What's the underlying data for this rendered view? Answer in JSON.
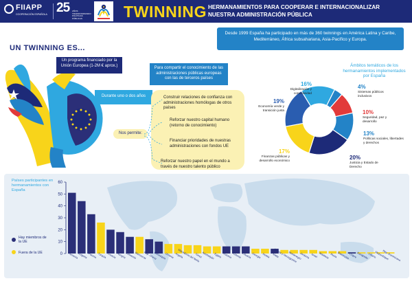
{
  "header": {
    "logo_name": "FIIAPP",
    "logo_sub": "COOPERACIÓN ESPAÑOLA",
    "anniv_num": "25",
    "anniv_sub": "AÑOS TRANSFORMANDO POLÍTICAS PÚBLICAS",
    "main_title": "TWINNING",
    "sub_title": "HERMANAMIENTOS PARA COOPERAR E INTERNACIONALIZAR NUESTRA ADMINISTRACIÓN PÚBLICA"
  },
  "section_title": "UN TWINNING ES...",
  "intro": "Desde 1999 España ha participado en más de 360 twinnings en América Latina y Caribe, Mediterráneo, África subsahariana, Asia-Pacífico y Europa.",
  "bubbles": {
    "funded": "Un programa financiado por la Unión Europea (1-2M € aprox.)",
    "share": "Para compartir el conocimiento de las administraciones públicas europeas con las de terceros países",
    "duration": "Durante uno o dos años",
    "allows": "Nos permite:"
  },
  "benefits": [
    "Construir relaciones de confianza con administraciones homólogas de otros países",
    "Reforzar nuestro capital humano (retorno de conocimiento)",
    "Financiar prioridades de nuestras administraciones con fondos UE",
    "Reforzar nuestro papel en el mundo a través de nuestro talento público"
  ],
  "donut": {
    "title": "Ámbitos temáticos de los hermanamientos implementados por España",
    "segments": [
      {
        "pct": "16%",
        "label": "Digitalización y conectividad",
        "value": 16,
        "color": "#2fa8e0"
      },
      {
        "pct": "4%",
        "label": "Sistemas públicos inclusivos",
        "value": 4,
        "color": "#2383c7"
      },
      {
        "pct": "10%",
        "label": "Seguridad, paz y desarrollo",
        "value": 10,
        "color": "#e23a3a"
      },
      {
        "pct": "13%",
        "label": "Políticas sociales, libertades y derechos",
        "value": 13,
        "color": "#2383c7"
      },
      {
        "pct": "20%",
        "label": "Justicia y Estado de Derecho",
        "value": 20,
        "color": "#1d2a78"
      },
      {
        "pct": "17%",
        "label": "Finanzas públicas y desarrollo económico",
        "value": 17,
        "color": "#f8d41a"
      },
      {
        "pct": "19%",
        "label": "Economía verde y transición justa",
        "value": 19,
        "color": "#2a5db0"
      }
    ]
  },
  "chart_data": {
    "type": "bar",
    "title": "Países participantes en hermanamientos con España",
    "ylim": [
      0,
      60
    ],
    "yticks": [
      0,
      10,
      20,
      30,
      40,
      50,
      60
    ],
    "legend": [
      {
        "name": "Hay miembros de la UE",
        "color": "#2b2f78"
      },
      {
        "name": "Fuera de la UE",
        "color": "#f8d41a"
      }
    ],
    "categories": [
      "Rumanía",
      "Bulgaria",
      "Polonia",
      "Turquía",
      "Croacia",
      "Hungría",
      "Eslovenia",
      "Marruecos",
      "Rep. Checa",
      "Eslovaquia",
      "Ucrania",
      "Argelia",
      "Macedonia del Norte",
      "Túnez",
      "Azerbaiyán",
      "Egipto",
      "Estonia",
      "Letonia",
      "Lituania",
      "Georgia",
      "Serbia",
      "Malta",
      "Bosnia y Herzegovina",
      "Montenegro",
      "Jordania",
      "Israel",
      "Moldavia",
      "Rusia",
      "Bielorrusia",
      "Chipre",
      "Kazajistán",
      "Líbano",
      "Mozambique",
      "Rep. Dominicana"
    ],
    "values": [
      51,
      44,
      33,
      26,
      20,
      18,
      14,
      14,
      12,
      10,
      8,
      8,
      7,
      7,
      6,
      6,
      6,
      6,
      6,
      4,
      4,
      4,
      3,
      3,
      3,
      3,
      2,
      2,
      2,
      1,
      1,
      1,
      1,
      1
    ],
    "member": [
      true,
      true,
      true,
      false,
      true,
      true,
      true,
      false,
      true,
      true,
      false,
      false,
      false,
      false,
      false,
      false,
      true,
      true,
      true,
      false,
      false,
      true,
      false,
      false,
      false,
      false,
      false,
      false,
      false,
      true,
      false,
      false,
      false,
      false
    ]
  }
}
